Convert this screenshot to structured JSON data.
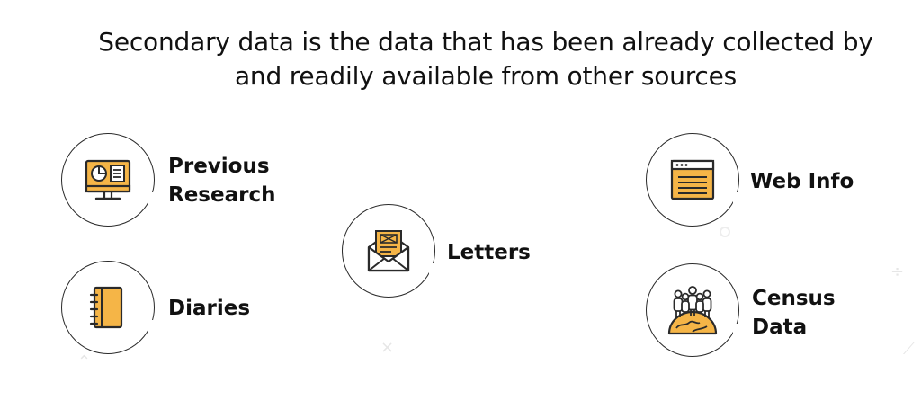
{
  "title": {
    "line1": "Secondary data is the data that has been already collected by",
    "line2": "and readily available from other sources"
  },
  "items": [
    {
      "id": "previous-research",
      "line1": "Previous",
      "line2": "Research",
      "icon": "monitor-report-icon"
    },
    {
      "id": "diaries",
      "line1": "Diaries",
      "icon": "notebook-icon"
    },
    {
      "id": "letters",
      "line1": "Letters",
      "icon": "envelope-letter-icon"
    },
    {
      "id": "web-info",
      "line1": "Web Info",
      "icon": "browser-window-icon"
    },
    {
      "id": "census-data",
      "line1": "Census",
      "line2": "Data",
      "icon": "people-globe-icon"
    }
  ],
  "colors": {
    "accent": "#F5B547",
    "outline": "#2A2A2A",
    "text": "#111111"
  }
}
